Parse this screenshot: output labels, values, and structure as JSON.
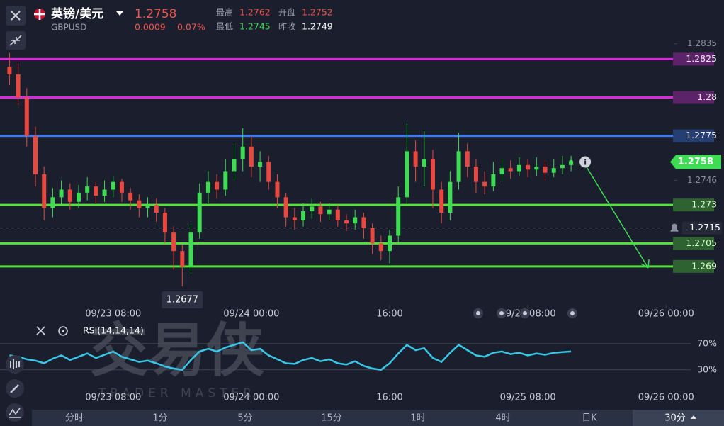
{
  "header": {
    "title": "英镑/美元",
    "symbol": "GBPUSD",
    "price": "1.2758",
    "change": "0.0009",
    "change_pct": "0.07%",
    "stats": [
      {
        "label": "最高",
        "value": "1.2762",
        "color": "#f0554a"
      },
      {
        "label": "开盘",
        "value": "1.2752",
        "color": "#f0554a"
      },
      {
        "label": "最低",
        "value": "1.2745",
        "color": "#3ddc52"
      },
      {
        "label": "昨收",
        "value": "1.2749",
        "color": "#ffffff"
      }
    ]
  },
  "chart_data": {
    "type": "candlestick",
    "x": [
      -4,
      -3,
      -2,
      -1,
      0,
      1,
      2,
      3,
      4,
      5,
      6,
      7,
      8,
      9,
      10,
      11,
      12,
      13,
      14,
      15,
      16,
      17,
      18,
      19,
      20,
      21,
      22,
      23,
      24,
      25,
      26,
      27,
      28,
      29,
      30,
      31,
      32,
      33,
      34,
      35,
      36,
      37,
      38,
      39,
      40,
      41,
      42,
      43,
      44,
      45,
      46,
      47,
      48,
      49,
      50,
      51,
      52,
      53,
      54,
      55,
      56,
      57,
      58,
      59,
      60,
      61
    ],
    "open": [
      1.282,
      1.2815,
      1.28,
      1.2775,
      1.275,
      1.2728,
      1.2735,
      1.274,
      1.2732,
      1.2738,
      1.2742,
      1.2736,
      1.274,
      1.2745,
      1.2738,
      1.2733,
      1.2728,
      1.273,
      1.2725,
      1.2712,
      1.27,
      1.269,
      1.2712,
      1.2738,
      1.2745,
      1.274,
      1.2752,
      1.276,
      1.2768,
      1.2755,
      1.2758,
      1.2745,
      1.2735,
      1.2722,
      1.272,
      1.2726,
      1.2729,
      1.2724,
      1.2727,
      1.272,
      1.2718,
      1.2722,
      1.2715,
      1.2705,
      1.27,
      1.271,
      1.2735,
      1.2765,
      1.2755,
      1.276,
      1.274,
      1.2725,
      1.2745,
      1.2765,
      1.2755,
      1.2745,
      1.2742,
      1.275,
      1.2754,
      1.2752,
      1.2756,
      1.2753,
      1.2755,
      1.2751,
      1.2754,
      1.2756
    ],
    "high": [
      1.2829,
      1.2822,
      1.2806,
      1.2781,
      1.2755,
      1.2741,
      1.2746,
      1.2744,
      1.2743,
      1.2748,
      1.2745,
      1.2746,
      1.2749,
      1.2747,
      1.2741,
      1.2737,
      1.2735,
      1.2734,
      1.2728,
      1.2716,
      1.2704,
      1.2718,
      1.2744,
      1.2752,
      1.275,
      1.276,
      1.277,
      1.278,
      1.2775,
      1.2765,
      1.2762,
      1.275,
      1.2738,
      1.2728,
      1.2731,
      1.2734,
      1.2732,
      1.2731,
      1.273,
      1.2724,
      1.2727,
      1.2725,
      1.2718,
      1.271,
      1.2714,
      1.2742,
      1.2783,
      1.2772,
      1.2778,
      1.2766,
      1.2745,
      1.2752,
      1.2777,
      1.277,
      1.276,
      1.2752,
      1.2758,
      1.276,
      1.2759,
      1.2761,
      1.276,
      1.2761,
      1.2759,
      1.276,
      1.2762,
      1.2762
    ],
    "low": [
      1.2808,
      1.2795,
      1.2768,
      1.2742,
      1.272,
      1.2722,
      1.273,
      1.2727,
      1.2728,
      1.2733,
      1.2731,
      1.2732,
      1.2735,
      1.2732,
      1.2727,
      1.2722,
      1.2722,
      1.2719,
      1.2705,
      1.2688,
      1.2677,
      1.2685,
      1.2708,
      1.2731,
      1.2734,
      1.2736,
      1.2746,
      1.2752,
      1.2748,
      1.2745,
      1.274,
      1.2728,
      1.2716,
      1.2714,
      1.2716,
      1.2721,
      1.2719,
      1.272,
      1.2716,
      1.2713,
      1.2714,
      1.2708,
      1.2698,
      1.2694,
      1.2692,
      1.2706,
      1.273,
      1.2745,
      1.2742,
      1.2728,
      1.2718,
      1.272,
      1.274,
      1.2748,
      1.2738,
      1.2737,
      1.2739,
      1.2745,
      1.2747,
      1.2749,
      1.2748,
      1.2749,
      1.2746,
      1.2748,
      1.275,
      1.2752
    ],
    "close": [
      1.2815,
      1.28,
      1.2775,
      1.275,
      1.2728,
      1.2735,
      1.274,
      1.2732,
      1.2738,
      1.2742,
      1.2736,
      1.274,
      1.2745,
      1.2738,
      1.2733,
      1.2728,
      1.273,
      1.2725,
      1.2712,
      1.27,
      1.269,
      1.2712,
      1.2738,
      1.2745,
      1.274,
      1.2752,
      1.276,
      1.2768,
      1.2755,
      1.2758,
      1.2745,
      1.2735,
      1.2722,
      1.272,
      1.2726,
      1.2729,
      1.2724,
      1.2727,
      1.272,
      1.2718,
      1.2722,
      1.2715,
      1.2705,
      1.27,
      1.271,
      1.2735,
      1.2765,
      1.2755,
      1.276,
      1.274,
      1.2725,
      1.2745,
      1.2765,
      1.2755,
      1.2745,
      1.2742,
      1.275,
      1.2754,
      1.2752,
      1.2756,
      1.2753,
      1.2755,
      1.2751,
      1.2754,
      1.2756,
      1.2758
    ],
    "up_color": "#3ddc52",
    "down_color": "#e8483f",
    "xlim": [
      -5.1,
      72.8
    ],
    "xticks": [
      {
        "value": 8,
        "label": "09/23 08:00"
      },
      {
        "value": 24,
        "label": "09/24 00:00"
      },
      {
        "value": 40,
        "label": "16:00"
      },
      {
        "value": 56,
        "label": "09/25 08:00"
      },
      {
        "value": 72,
        "label": "09/26 00:00"
      }
    ],
    "ylim": [
      1.2665,
      1.2845
    ],
    "yticks": [
      1.2835,
      1.2746
    ],
    "levels": [
      {
        "value": 1.2825,
        "color": "#d92bd9"
      },
      {
        "value": 1.28,
        "color": "#d92bd9"
      },
      {
        "value": 1.2775,
        "color": "#3d7bf5"
      },
      {
        "value": 1.273,
        "color": "#56e03a"
      },
      {
        "value": 1.2705,
        "color": "#56e03a"
      },
      {
        "value": 1.269,
        "color": "#56e03a"
      }
    ],
    "ref_line": 1.2715,
    "last_price": 1.2758,
    "low_annotation": 1.2677,
    "indicator": {
      "type": "line",
      "name": "RSI(14,14,14)",
      "color": "#37c8e8",
      "values": [
        52,
        50,
        46,
        44,
        40,
        47,
        52,
        45,
        50,
        55,
        48,
        53,
        58,
        50,
        46,
        42,
        44,
        40,
        35,
        32,
        30,
        45,
        58,
        62,
        58,
        64,
        68,
        72,
        60,
        62,
        52,
        46,
        40,
        39,
        45,
        48,
        43,
        46,
        40,
        38,
        43,
        36,
        32,
        30,
        40,
        55,
        68,
        60,
        63,
        48,
        42,
        56,
        68,
        60,
        52,
        50,
        56,
        58,
        54,
        56,
        52,
        55,
        53,
        56,
        57,
        58
      ],
      "ylim": [
        0,
        100
      ],
      "yticks": [
        {
          "value": 30,
          "label": "30%"
        },
        {
          "value": 70,
          "label": "70%"
        }
      ]
    }
  },
  "watermark": {
    "title": "交易侠",
    "subtitle": "TRADER MASTER"
  },
  "tabs": [
    "分时",
    "1分",
    "5分",
    "15分",
    "1时",
    "4时",
    "日K",
    "30分"
  ]
}
